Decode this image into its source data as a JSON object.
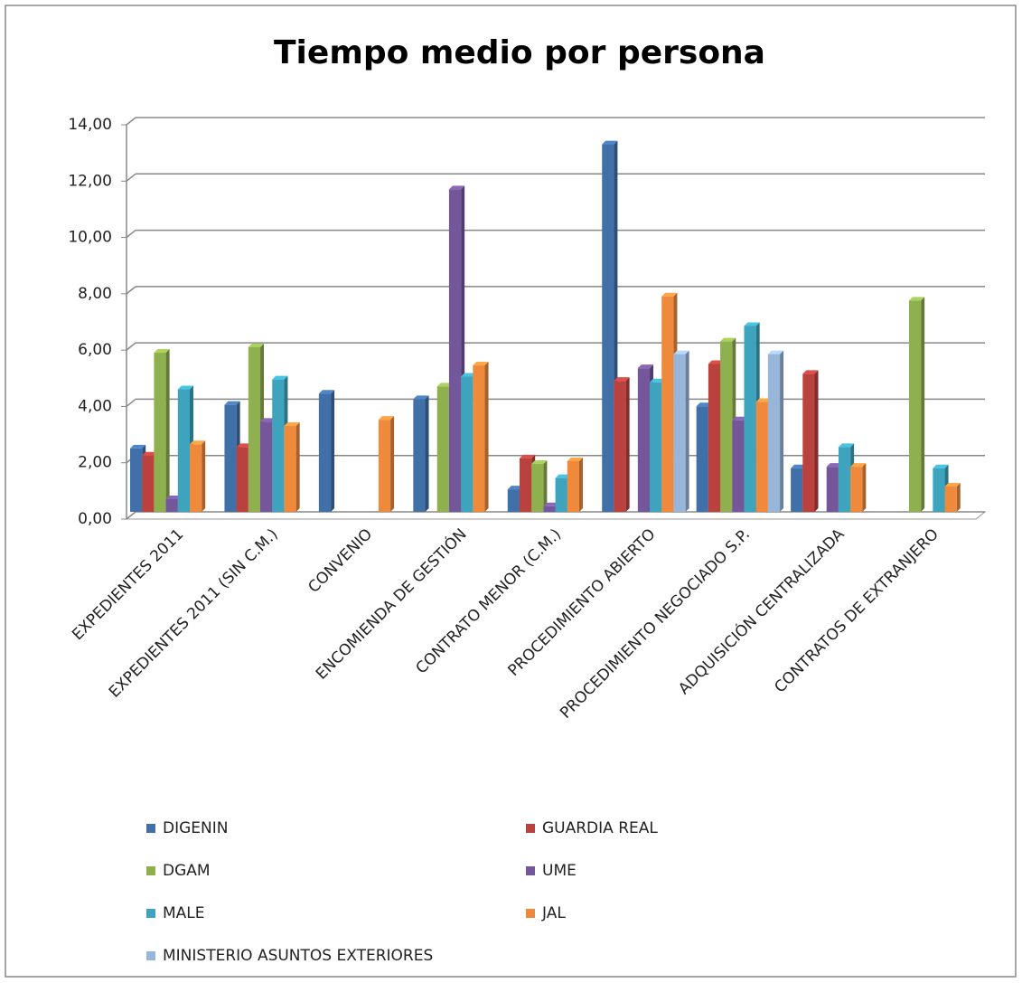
{
  "chart_data": {
    "type": "bar",
    "title": "Tiempo medio por persona",
    "categories": [
      "EXPEDIENTES 2011",
      "EXPEDIENTES 2011 (SIN C.M.)",
      "CONVENIO",
      "ENCOMIENDA DE GESTIÓN",
      "CONTRATO MENOR (C.M.)",
      "PROCEDIMIENTO ABIERTO",
      "PROCEDIMIENTO NEGOCIADO S.P.",
      "ADQUISICIÓN CENTRALIZADA",
      "CONTRATOS DE EXTRANJERO"
    ],
    "series": [
      {
        "name": "DIGENIN",
        "color": "#4170a8",
        "values": [
          2.25,
          3.8,
          4.2,
          4.0,
          0.8,
          13.05,
          3.75,
          1.55,
          null
        ]
      },
      {
        "name": "GUARDIA REAL",
        "color": "#b9413e",
        "values": [
          2.0,
          2.3,
          null,
          null,
          1.9,
          4.65,
          5.25,
          4.9,
          null
        ]
      },
      {
        "name": "DGAM",
        "color": "#8fb04e",
        "values": [
          5.65,
          5.85,
          null,
          4.45,
          1.7,
          null,
          6.05,
          null,
          7.5
        ]
      },
      {
        "name": "UME",
        "color": "#74569a",
        "values": [
          0.45,
          3.2,
          null,
          11.45,
          0.2,
          5.1,
          3.25,
          1.6,
          null
        ]
      },
      {
        "name": "MALE",
        "color": "#3ea3bd",
        "values": [
          4.35,
          4.7,
          null,
          4.8,
          1.2,
          4.6,
          6.6,
          2.3,
          1.55
        ]
      },
      {
        "name": "JAL",
        "color": "#ef8a3c",
        "values": [
          2.4,
          3.05,
          3.27,
          5.2,
          1.8,
          7.65,
          3.9,
          1.6,
          0.9
        ]
      },
      {
        "name": "MINISTERIO ASUNTOS EXTERIORES",
        "color": "#98b5da",
        "values": [
          null,
          null,
          null,
          null,
          null,
          5.6,
          5.6,
          null,
          null
        ]
      }
    ],
    "ylim": [
      0,
      14
    ],
    "yticks": [
      {
        "value": 0,
        "label": "0,00"
      },
      {
        "value": 2,
        "label": "2,00"
      },
      {
        "value": 4,
        "label": "4,00"
      },
      {
        "value": 6,
        "label": "6,00"
      },
      {
        "value": 8,
        "label": "8,00"
      },
      {
        "value": 10,
        "label": "10,00"
      },
      {
        "value": 12,
        "label": "12,00"
      },
      {
        "value": 14,
        "label": "14,00"
      }
    ],
    "grid": true
  }
}
